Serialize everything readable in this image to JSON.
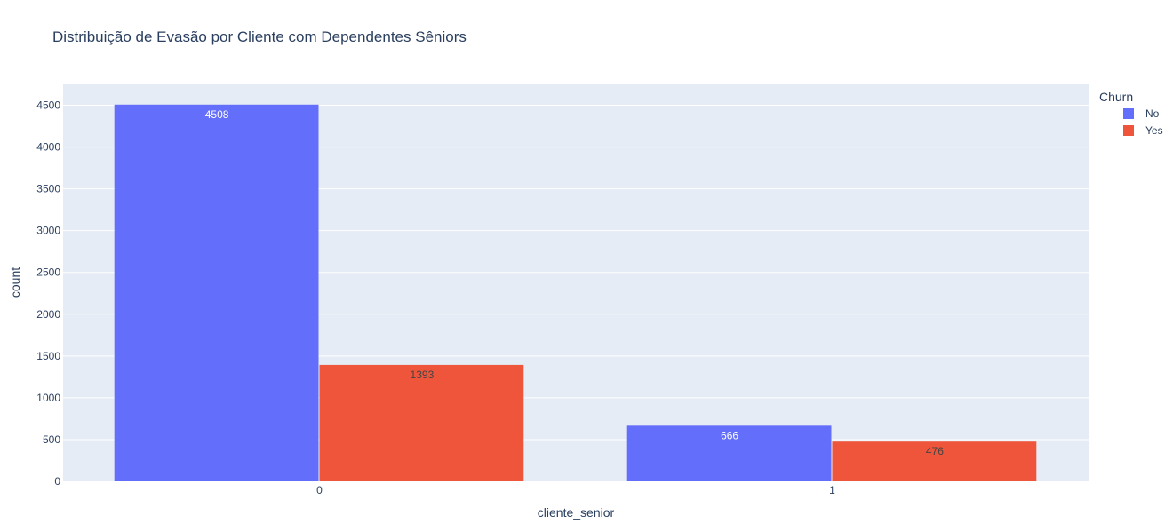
{
  "chart_data": {
    "type": "bar",
    "title": "Distribuição de Evasão por Cliente com Dependentes Sêniors",
    "xlabel": "cliente_senior",
    "ylabel": "count",
    "categories": [
      "0",
      "1"
    ],
    "series": [
      {
        "name": "No",
        "values": [
          4508,
          666
        ],
        "color": "#636efa",
        "label_color": "#ffffff"
      },
      {
        "name": "Yes",
        "values": [
          1393,
          476
        ],
        "color": "#ef553b",
        "label_color": "#444444"
      }
    ],
    "ylim": [
      0,
      4750
    ],
    "yticks": [
      0,
      500,
      1000,
      1500,
      2000,
      2500,
      3000,
      3500,
      4000,
      4500
    ],
    "legend_title": "Churn",
    "legend_position": "top-right",
    "grid": true,
    "barmode": "group",
    "colors": {
      "plot_background": "#e5ecf6",
      "grid": "#ffffff",
      "text": "#2a3f5f"
    }
  }
}
